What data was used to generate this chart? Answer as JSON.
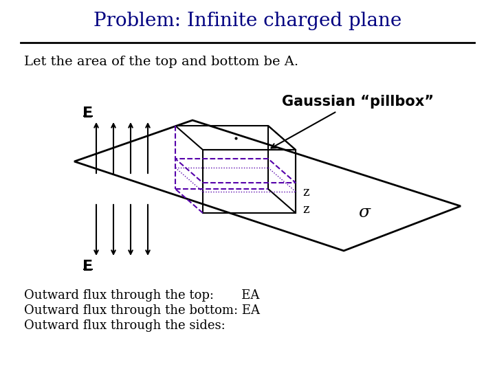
{
  "title": "Problem: Infinite charged plane",
  "title_color": "#000080",
  "title_fontsize": 20,
  "subtitle": "Let the area of the top and bottom be A.",
  "subtitle_fontsize": 14,
  "body_fontsize": 13,
  "flux_lines": [
    "Outward flux through the top:       EA",
    "Outward flux through the bottom: EA",
    "Outward flux through the sides:"
  ],
  "label_E_top": "E",
  "label_E_bottom": "E",
  "label_gaussian": "Gaussian “pillbox”",
  "label_sigma": "σ",
  "label_z1": "z",
  "label_z2": "z",
  "plane_color": "#000000",
  "arrow_color": "#000000",
  "box_solid_color": "#000000",
  "box_dashed_color": "#5500aa",
  "box_dotted_color": "#5500aa",
  "background_color": "#ffffff"
}
